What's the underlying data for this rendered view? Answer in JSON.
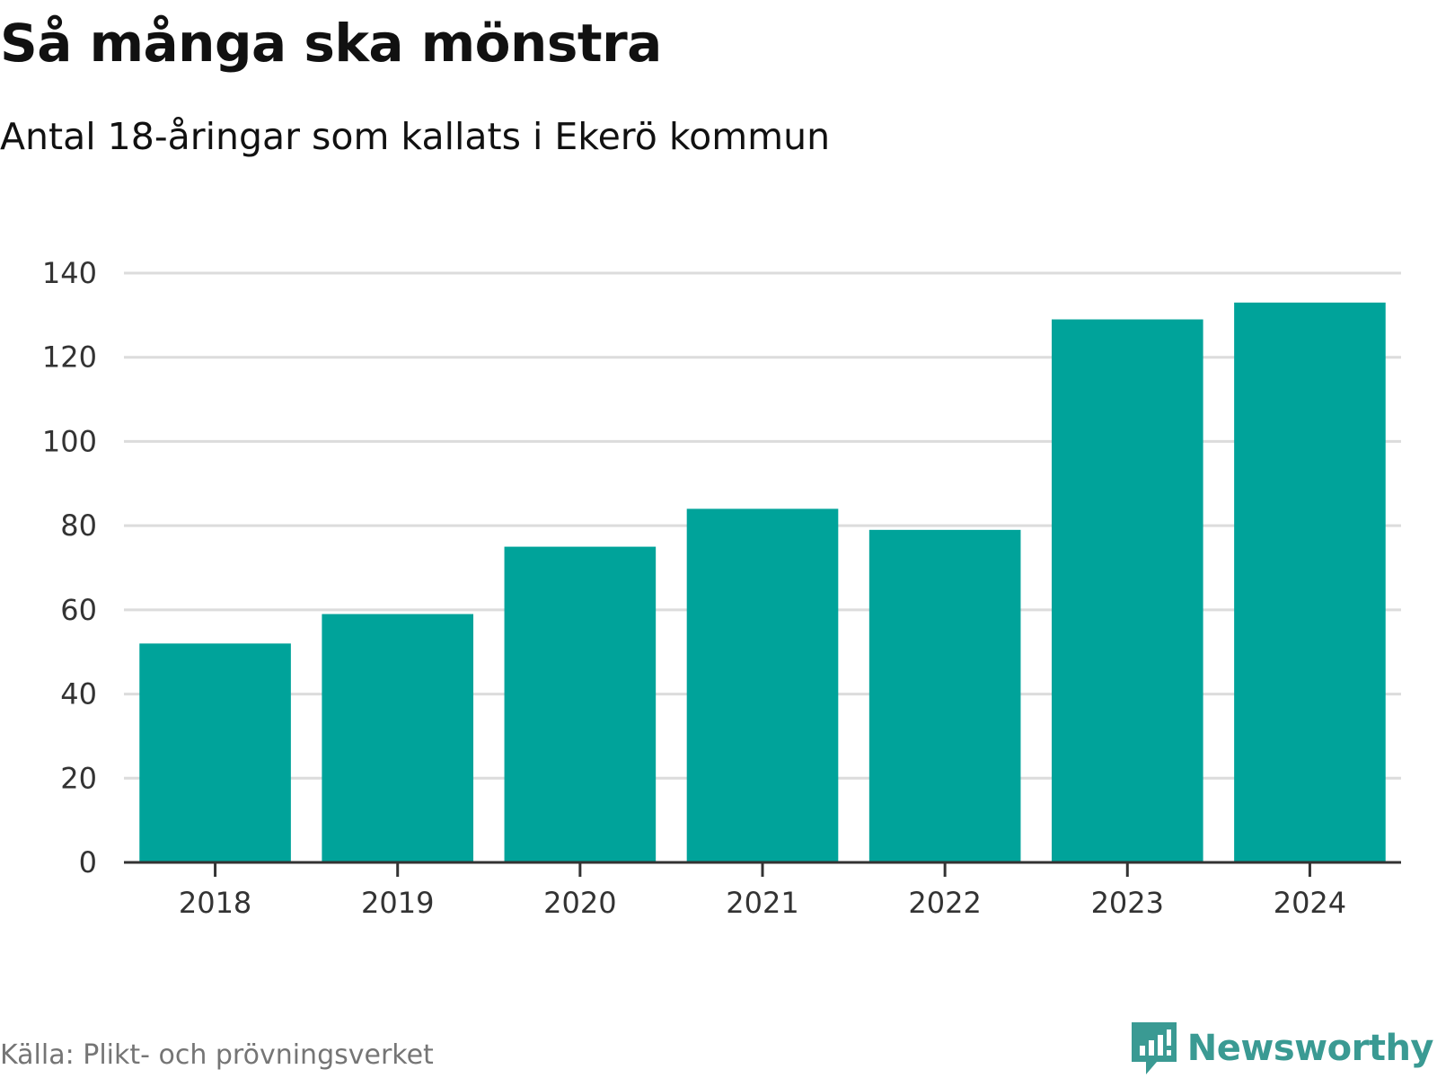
{
  "chart_data": {
    "type": "bar",
    "title": "Så många ska mönstra",
    "subtitle": "Antal 18-åringar som kallats i Ekerö kommun",
    "categories": [
      "2018",
      "2019",
      "2020",
      "2021",
      "2022",
      "2023",
      "2024"
    ],
    "values": [
      52,
      59,
      75,
      84,
      79,
      129,
      133
    ],
    "xlabel": "",
    "ylabel": "",
    "ylim": [
      0,
      140
    ],
    "yticks": [
      "0",
      "20",
      "40",
      "60",
      "80",
      "100",
      "120",
      "140"
    ],
    "grid": true,
    "legend": "none",
    "bar_color": "#00a39a"
  },
  "footer": {
    "source": "Källa: Plikt- och prövningsverket",
    "brand": "Newsworthy",
    "brand_icon": "newsworthy-logo-icon",
    "brand_color": "#3a9a93"
  }
}
